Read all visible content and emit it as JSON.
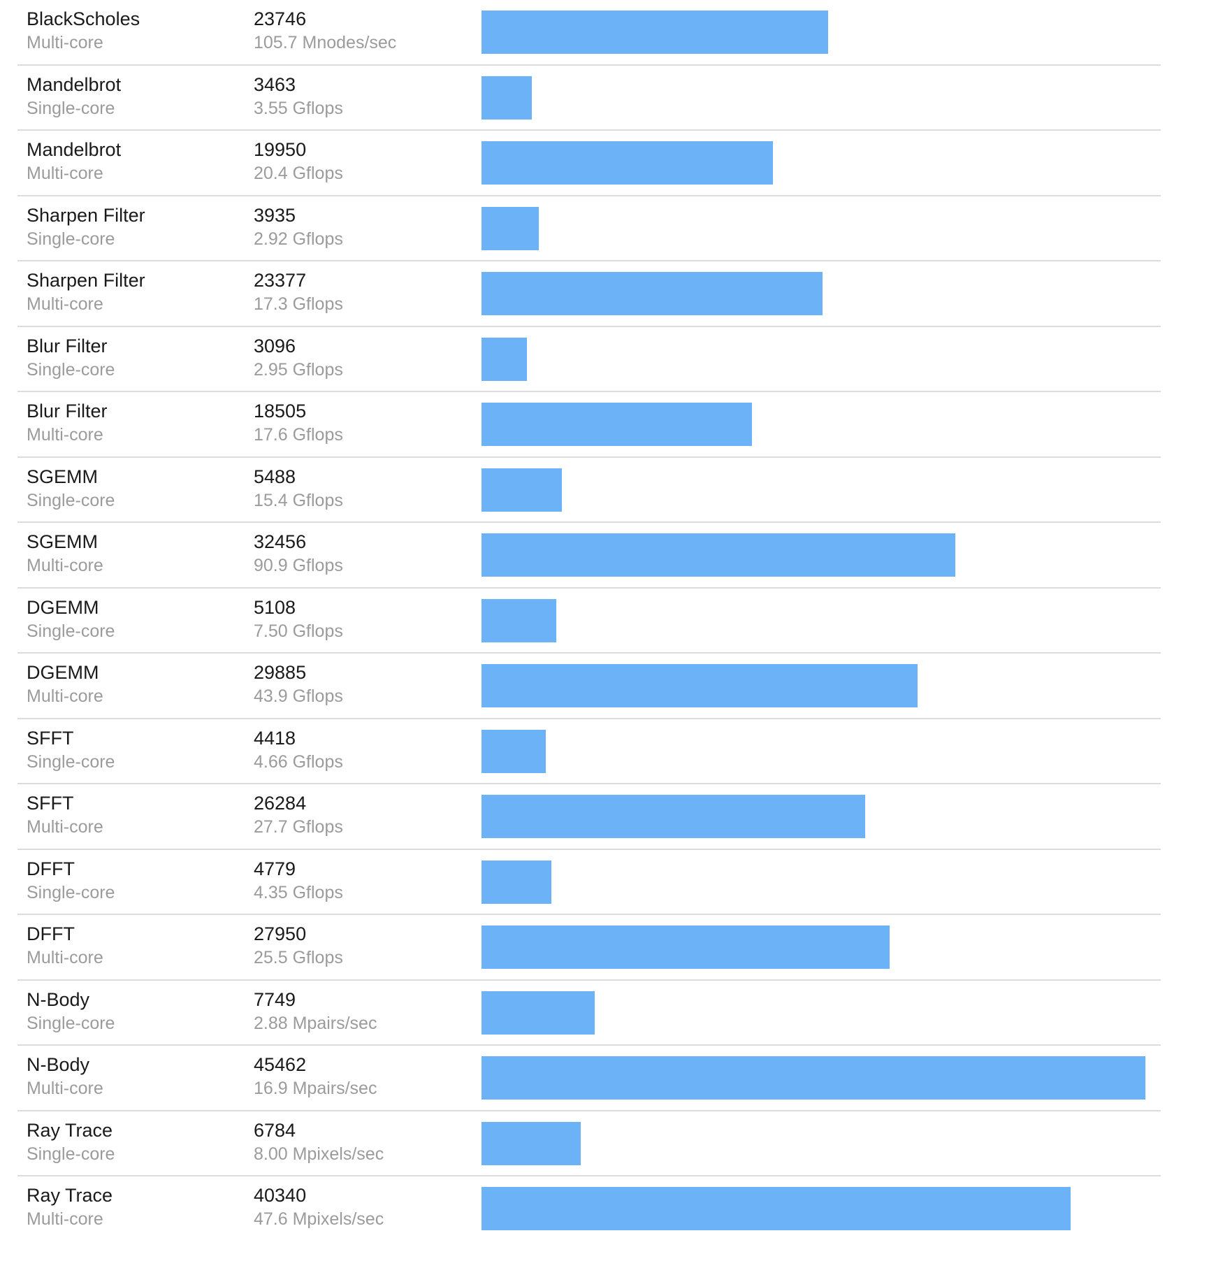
{
  "colors": {
    "bar": "#6cb2f7",
    "divider": "#dcdcdc",
    "primary_text": "#1a1a1a",
    "secondary_text": "#9b9b9b"
  },
  "chart_data": {
    "type": "bar",
    "orientation": "horizontal",
    "max_score": 45462,
    "rows": [
      {
        "name": "BlackScholes",
        "mode": "Multi-core",
        "score": 23746,
        "metric": "105.7 Mnodes/sec"
      },
      {
        "name": "Mandelbrot",
        "mode": "Single-core",
        "score": 3463,
        "metric": "3.55 Gflops"
      },
      {
        "name": "Mandelbrot",
        "mode": "Multi-core",
        "score": 19950,
        "metric": "20.4 Gflops"
      },
      {
        "name": "Sharpen Filter",
        "mode": "Single-core",
        "score": 3935,
        "metric": "2.92 Gflops"
      },
      {
        "name": "Sharpen Filter",
        "mode": "Multi-core",
        "score": 23377,
        "metric": "17.3 Gflops"
      },
      {
        "name": "Blur Filter",
        "mode": "Single-core",
        "score": 3096,
        "metric": "2.95 Gflops"
      },
      {
        "name": "Blur Filter",
        "mode": "Multi-core",
        "score": 18505,
        "metric": "17.6 Gflops"
      },
      {
        "name": "SGEMM",
        "mode": "Single-core",
        "score": 5488,
        "metric": "15.4 Gflops"
      },
      {
        "name": "SGEMM",
        "mode": "Multi-core",
        "score": 32456,
        "metric": "90.9 Gflops"
      },
      {
        "name": "DGEMM",
        "mode": "Single-core",
        "score": 5108,
        "metric": "7.50 Gflops"
      },
      {
        "name": "DGEMM",
        "mode": "Multi-core",
        "score": 29885,
        "metric": "43.9 Gflops"
      },
      {
        "name": "SFFT",
        "mode": "Single-core",
        "score": 4418,
        "metric": "4.66 Gflops"
      },
      {
        "name": "SFFT",
        "mode": "Multi-core",
        "score": 26284,
        "metric": "27.7 Gflops"
      },
      {
        "name": "DFFT",
        "mode": "Single-core",
        "score": 4779,
        "metric": "4.35 Gflops"
      },
      {
        "name": "DFFT",
        "mode": "Multi-core",
        "score": 27950,
        "metric": "25.5 Gflops"
      },
      {
        "name": "N-Body",
        "mode": "Single-core",
        "score": 7749,
        "metric": "2.88 Mpairs/sec"
      },
      {
        "name": "N-Body",
        "mode": "Multi-core",
        "score": 45462,
        "metric": "16.9 Mpairs/sec"
      },
      {
        "name": "Ray Trace",
        "mode": "Single-core",
        "score": 6784,
        "metric": "8.00 Mpixels/sec"
      },
      {
        "name": "Ray Trace",
        "mode": "Multi-core",
        "score": 40340,
        "metric": "47.6 Mpixels/sec"
      }
    ]
  }
}
